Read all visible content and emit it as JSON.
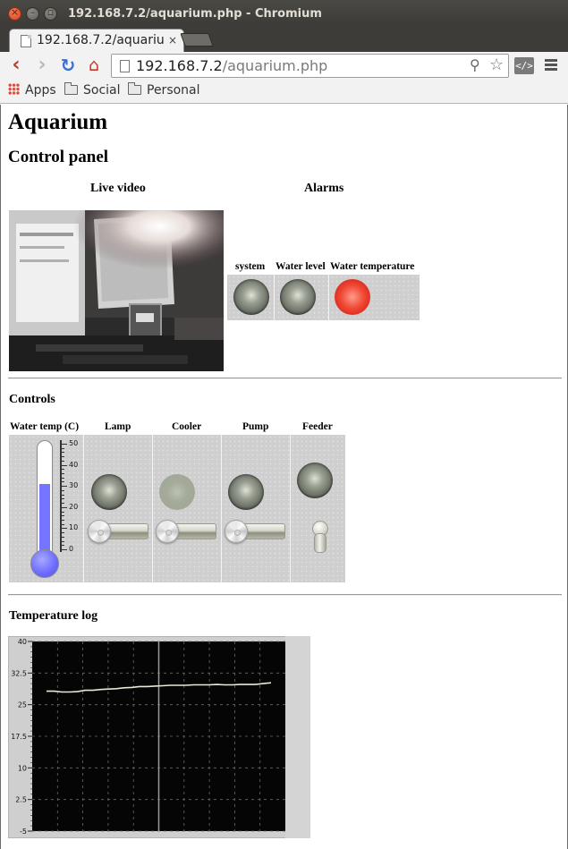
{
  "window": {
    "title": "192.168.7.2/aquarium.php - Chromium",
    "close_glyph": "×",
    "min_glyph": "–",
    "max_glyph": "▫"
  },
  "tab": {
    "title": "192.168.7.2/aquarium.php",
    "close_glyph": "×"
  },
  "toolbar": {
    "back_glyph": "‹",
    "forward_glyph": "›",
    "reload_glyph": "↻",
    "home_glyph": "⌂",
    "url_host": "192.168.7.2",
    "url_path": "/aquarium.php",
    "zoom_glyph": "⚲",
    "star_glyph": "☆",
    "ext_glyph": "</>"
  },
  "bookmarks": {
    "apps": "Apps",
    "social": "Social",
    "personal": "Personal"
  },
  "page": {
    "title": "Aquarium",
    "control_panel": "Control panel",
    "live_video": "Live video",
    "alarms": "Alarms"
  },
  "alarms": [
    {
      "label": "system",
      "state": "off"
    },
    {
      "label": "Water level",
      "state": "off"
    },
    {
      "label": "Water temperature",
      "state": "on"
    }
  ],
  "controls": {
    "heading": "Controls",
    "water_temp_label": "Water temp (C)",
    "water_temp_value": 31,
    "thermo_scale_max": 50,
    "thermo_ticks": [
      "50",
      "40",
      "30",
      "20",
      "10",
      "0"
    ],
    "items": [
      {
        "label": "Lamp",
        "indicator": "off",
        "switch": "off"
      },
      {
        "label": "Cooler",
        "indicator": "disabled",
        "switch": "off"
      },
      {
        "label": "Pump",
        "indicator": "off",
        "switch": "off"
      },
      {
        "label": "Feeder",
        "indicator": "off",
        "switch": "toggle"
      }
    ]
  },
  "temperature_log": {
    "heading": "Temperature log"
  },
  "chart_data": {
    "type": "line",
    "title": "",
    "xlabel": "",
    "ylabel": "",
    "ylim": [
      -5,
      40
    ],
    "yticks": [
      "40",
      "32.5",
      "25",
      "17.5",
      "10",
      "2.5",
      "-5"
    ],
    "grid": true,
    "series": [
      {
        "values": [
          28.2,
          28.2,
          28.0,
          28.0,
          28.1,
          28.4,
          28.4,
          28.6,
          28.7,
          28.8,
          29.0,
          29.1,
          29.3,
          29.3,
          29.4,
          29.5,
          29.6,
          29.6,
          29.6,
          29.7,
          29.7,
          29.7,
          29.8,
          29.7,
          29.7,
          29.8,
          29.8,
          29.8,
          30.0,
          30.2
        ]
      }
    ]
  }
}
